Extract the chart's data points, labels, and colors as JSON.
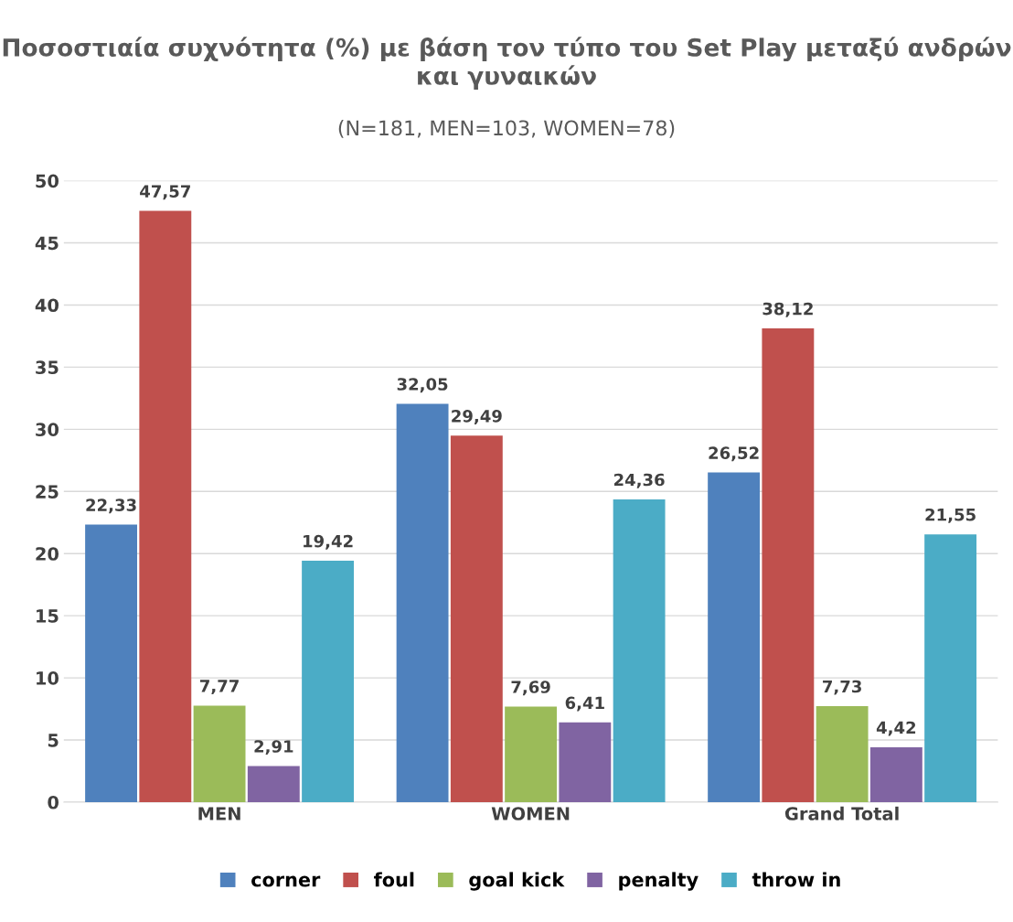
{
  "chart_data": {
    "type": "bar",
    "title": "Ποσοστιαία συχνότητα (%) με βάση τον τύπο του Set Play μεταξύ ανδρών και γυναικών",
    "subtitle": "(N=181, MEN=103, WOMEN=78)",
    "categories": [
      "MEN",
      "WOMEN",
      "Grand Total"
    ],
    "series": [
      {
        "name": "corner",
        "color": "#4f81bd",
        "values": [
          22.33,
          32.05,
          26.52
        ],
        "value_labels": [
          "22,33",
          "32,05",
          "26,52"
        ]
      },
      {
        "name": "foul",
        "color": "#c0504d",
        "values": [
          47.57,
          29.49,
          38.12
        ],
        "value_labels": [
          "47,57",
          "29,49",
          "38,12"
        ]
      },
      {
        "name": "goal kick",
        "color": "#9bbb59",
        "values": [
          7.77,
          7.69,
          7.73
        ],
        "value_labels": [
          "7,77",
          "7,69",
          "7,73"
        ]
      },
      {
        "name": "penalty",
        "color": "#8064a2",
        "values": [
          2.91,
          6.41,
          4.42
        ],
        "value_labels": [
          "2,91",
          "6,41",
          "4,42"
        ]
      },
      {
        "name": "throw in",
        "color": "#4bacc6",
        "values": [
          19.42,
          24.36,
          21.55
        ],
        "value_labels": [
          "19,42",
          "24,36",
          "21,55"
        ]
      }
    ],
    "ylim": [
      0,
      50
    ],
    "yticks": [
      0,
      5,
      10,
      15,
      20,
      25,
      30,
      35,
      40,
      45,
      50
    ],
    "grid": "y",
    "legend": "bottom"
  }
}
